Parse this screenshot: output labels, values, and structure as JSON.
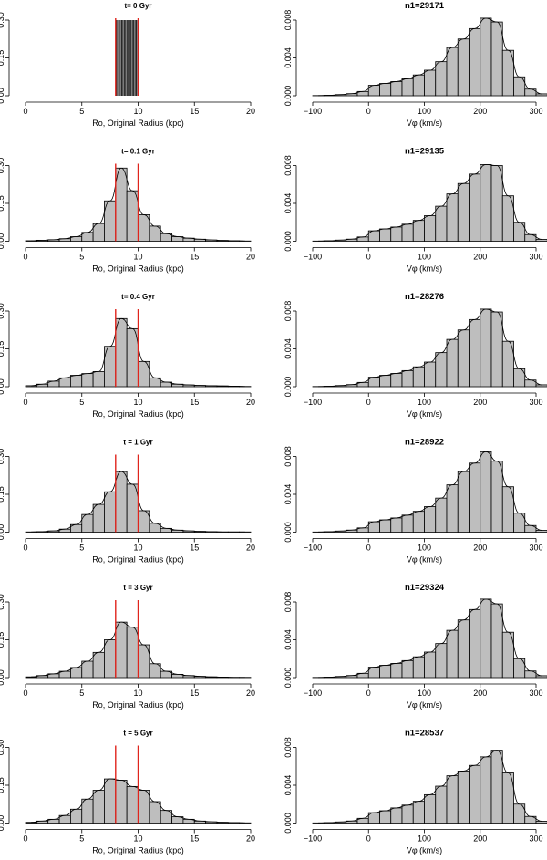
{
  "chart_data": [
    {
      "type": "bar",
      "title": "t= 0 Gyr",
      "xlabel": "Ro, Original Radius (kpc)",
      "ylabel": "",
      "xlim": [
        0,
        20
      ],
      "ylim": [
        0,
        0.3
      ],
      "xticks": [
        0,
        5,
        10,
        15,
        20
      ],
      "yticks": [
        "0.00",
        "0.15",
        "0.30"
      ],
      "ref_lines": [
        8,
        10
      ],
      "bin_width": 0.25,
      "special": "spikes",
      "spike_range": [
        8,
        10
      ],
      "spike_step": 0.12,
      "bins_start": 0,
      "values": []
    },
    {
      "type": "bar",
      "title": "n1=29171",
      "xlabel": "Vφ (km/s)",
      "ylabel": "",
      "xlim": [
        -100,
        300
      ],
      "ylim": [
        0,
        0.008
      ],
      "xticks": [
        -100,
        0,
        100,
        200,
        300
      ],
      "yticks": [
        "0.000",
        "0.004",
        "0.008"
      ],
      "ref_lines": [],
      "bin_width": 20,
      "bins_start": -100,
      "values": [
        2e-05,
        5e-05,
        0.00012,
        0.00022,
        0.00045,
        0.0011,
        0.0013,
        0.0015,
        0.0018,
        0.0022,
        0.0027,
        0.0036,
        0.0051,
        0.006,
        0.0071,
        0.0082,
        0.0078,
        0.0048,
        0.002,
        0.0007,
        0.0002
      ]
    },
    {
      "type": "bar",
      "title": "t= 0.1 Gyr",
      "xlabel": "Ro, Original Radius (kpc)",
      "ylabel": "",
      "xlim": [
        0,
        20
      ],
      "ylim": [
        0,
        0.3
      ],
      "xticks": [
        0,
        5,
        10,
        15,
        20
      ],
      "yticks": [
        "0.00",
        "0.15",
        "0.30"
      ],
      "ref_lines": [
        8,
        10
      ],
      "bin_width": 1,
      "bins_start": 0,
      "values": [
        0.002,
        0.004,
        0.006,
        0.01,
        0.018,
        0.035,
        0.07,
        0.16,
        0.29,
        0.2,
        0.105,
        0.06,
        0.03,
        0.018,
        0.012,
        0.008,
        0.005,
        0.003,
        0.002,
        0.001
      ]
    },
    {
      "type": "bar",
      "title": "n1=29135",
      "xlabel": "Vφ (km/s)",
      "ylabel": "",
      "xlim": [
        -100,
        300
      ],
      "ylim": [
        0,
        0.008
      ],
      "xticks": [
        -100,
        0,
        100,
        200,
        300
      ],
      "yticks": [
        "0.000",
        "0.004",
        "0.008"
      ],
      "ref_lines": [],
      "bin_width": 20,
      "bins_start": -100,
      "values": [
        2e-05,
        5e-05,
        0.00012,
        0.00022,
        0.00045,
        0.0011,
        0.0013,
        0.0015,
        0.0018,
        0.0022,
        0.0027,
        0.0037,
        0.005,
        0.0061,
        0.0071,
        0.0081,
        0.008,
        0.0048,
        0.002,
        0.0007,
        0.0002
      ]
    },
    {
      "type": "bar",
      "title": "t= 0.4 Gyr",
      "xlabel": "Ro, Original Radius (kpc)",
      "ylabel": "",
      "xlim": [
        0,
        20
      ],
      "ylim": [
        0,
        0.3
      ],
      "xticks": [
        0,
        5,
        10,
        15,
        20
      ],
      "yticks": [
        "0.00",
        "0.15",
        "0.30"
      ],
      "ref_lines": [
        8,
        10
      ],
      "bin_width": 1,
      "bins_start": 0,
      "values": [
        0.004,
        0.01,
        0.022,
        0.035,
        0.045,
        0.052,
        0.06,
        0.16,
        0.27,
        0.23,
        0.1,
        0.035,
        0.018,
        0.01,
        0.007,
        0.005,
        0.004,
        0.003,
        0.002,
        0.001
      ]
    },
    {
      "type": "bar",
      "title": "n1=28276",
      "xlabel": "Vφ (km/s)",
      "ylabel": "",
      "xlim": [
        -100,
        300
      ],
      "ylim": [
        0,
        0.008
      ],
      "xticks": [
        -100,
        0,
        100,
        200,
        300
      ],
      "yticks": [
        "0.000",
        "0.004",
        "0.008"
      ],
      "ref_lines": [],
      "bin_width": 20,
      "bins_start": -100,
      "values": [
        2e-05,
        5e-05,
        0.00012,
        0.00022,
        0.00045,
        0.001,
        0.0012,
        0.0014,
        0.0017,
        0.0021,
        0.0026,
        0.0036,
        0.005,
        0.006,
        0.0071,
        0.0082,
        0.0079,
        0.0048,
        0.0019,
        0.0007,
        0.0002
      ]
    },
    {
      "type": "bar",
      "title": "t = 1 Gyr",
      "xlabel": "Ro, Original Radius (kpc)",
      "ylabel": "",
      "xlim": [
        0,
        20
      ],
      "ylim": [
        0,
        0.3
      ],
      "xticks": [
        0,
        5,
        10,
        15,
        20
      ],
      "yticks": [
        "0.00",
        "0.15",
        "0.30"
      ],
      "ref_lines": [
        8,
        10
      ],
      "bin_width": 1,
      "bins_start": 0,
      "values": [
        0.001,
        0.002,
        0.005,
        0.012,
        0.03,
        0.07,
        0.11,
        0.16,
        0.24,
        0.19,
        0.085,
        0.035,
        0.015,
        0.008,
        0.005,
        0.003,
        0.002,
        0.001,
        0.001,
        0.001
      ]
    },
    {
      "type": "bar",
      "title": "n1=28922",
      "xlabel": "Vφ (km/s)",
      "ylabel": "",
      "xlim": [
        -100,
        300
      ],
      "ylim": [
        0,
        0.008
      ],
      "xticks": [
        -100,
        0,
        100,
        200,
        300
      ],
      "yticks": [
        "0.000",
        "0.004",
        "0.008"
      ],
      "ref_lines": [],
      "bin_width": 20,
      "bins_start": -100,
      "values": [
        2e-05,
        5e-05,
        0.00012,
        0.00022,
        0.00045,
        0.0011,
        0.0013,
        0.0015,
        0.0018,
        0.0022,
        0.0027,
        0.0036,
        0.005,
        0.0064,
        0.0073,
        0.0085,
        0.0075,
        0.0048,
        0.002,
        0.0007,
        0.0002
      ]
    },
    {
      "type": "bar",
      "title": "t = 3 Gyr",
      "xlabel": "Ro, Original Radius (kpc)",
      "ylabel": "",
      "xlim": [
        0,
        20
      ],
      "ylim": [
        0,
        0.3
      ],
      "xticks": [
        0,
        5,
        10,
        15,
        20
      ],
      "yticks": [
        "0.00",
        "0.15",
        "0.30"
      ],
      "ref_lines": [
        8,
        10
      ],
      "bin_width": 1,
      "bins_start": 0,
      "values": [
        0.003,
        0.008,
        0.015,
        0.025,
        0.04,
        0.065,
        0.1,
        0.15,
        0.22,
        0.2,
        0.13,
        0.055,
        0.025,
        0.013,
        0.008,
        0.005,
        0.003,
        0.002,
        0.001,
        0.001
      ]
    },
    {
      "type": "bar",
      "title": "n1=29324",
      "xlabel": "Vφ (km/s)",
      "ylabel": "",
      "xlim": [
        -100,
        300
      ],
      "ylim": [
        0,
        0.008
      ],
      "xticks": [
        -100,
        0,
        100,
        200,
        300
      ],
      "yticks": [
        "0.000",
        "0.004",
        "0.008"
      ],
      "ref_lines": [],
      "bin_width": 20,
      "bins_start": -100,
      "values": [
        2e-05,
        5e-05,
        0.00012,
        0.00022,
        0.00045,
        0.0011,
        0.0013,
        0.0015,
        0.0018,
        0.0022,
        0.0027,
        0.0036,
        0.005,
        0.0061,
        0.0072,
        0.0083,
        0.0078,
        0.0048,
        0.002,
        0.0007,
        0.0002
      ]
    },
    {
      "type": "bar",
      "title": "t = 5  Gyr",
      "xlabel": "Ro, Original Radius (kpc)",
      "ylabel": "",
      "xlim": [
        0,
        20
      ],
      "ylim": [
        0,
        0.3
      ],
      "xticks": [
        0,
        5,
        10,
        15,
        20
      ],
      "yticks": [
        "0.00",
        "0.15",
        "0.30"
      ],
      "ref_lines": [
        8,
        10
      ],
      "bin_width": 1,
      "bins_start": 0,
      "values": [
        0.003,
        0.008,
        0.015,
        0.03,
        0.055,
        0.095,
        0.13,
        0.175,
        0.17,
        0.145,
        0.13,
        0.085,
        0.05,
        0.025,
        0.015,
        0.008,
        0.005,
        0.003,
        0.002,
        0.001
      ]
    },
    {
      "type": "bar",
      "title": "n1=28537",
      "xlabel": "Vφ (km/s)",
      "ylabel": "",
      "xlim": [
        -100,
        300
      ],
      "ylim": [
        0,
        0.008
      ],
      "xticks": [
        -100,
        0,
        100,
        200,
        300
      ],
      "yticks": [
        "0.000",
        "0.004",
        "0.008"
      ],
      "ref_lines": [],
      "bin_width": 20,
      "bins_start": -100,
      "values": [
        2e-05,
        5e-05,
        0.00012,
        0.00022,
        0.0005,
        0.0011,
        0.0013,
        0.0016,
        0.0019,
        0.0023,
        0.003,
        0.0039,
        0.005,
        0.0055,
        0.0061,
        0.007,
        0.0077,
        0.0053,
        0.002,
        0.0007,
        0.0002
      ]
    }
  ]
}
